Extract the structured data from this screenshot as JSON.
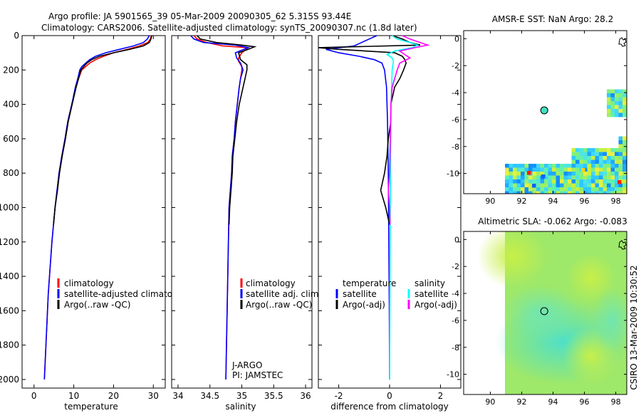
{
  "header": {
    "line1": "Argo profile: JA 5901565_39 05-Mar-2009 20090305_62 5.315S 93.44E",
    "line2": "Climatology: CARS2006. Satellite-adjusted climatology: synTS_20090307.nc (1.8d later)"
  },
  "credit": "CSIRO 13-Mar-2009 10:30:52",
  "colors": {
    "climatology": "#ff0000",
    "satellite": "#0000ff",
    "argo": "#000000",
    "sat_diff_salinity": "#00ffff",
    "argo_diff_salinity": "#ff00ff"
  },
  "chart_data": [
    {
      "id": "temperature",
      "type": "line",
      "xlabel": "temperature",
      "ylabel": "",
      "xlim": [
        -3,
        33
      ],
      "ylim": [
        2050,
        0
      ],
      "xticks": [
        0,
        10,
        20,
        30
      ],
      "yticks": [
        0,
        200,
        400,
        600,
        800,
        1000,
        1200,
        1400,
        1600,
        1800,
        2000
      ],
      "legend": [
        "climatology",
        "satellite-adjusted climatology",
        "Argo(..raw -QC)"
      ],
      "series": [
        {
          "name": "climatology",
          "color": "#ff0000",
          "points": [
            [
              29.5,
              0
            ],
            [
              29.3,
              20
            ],
            [
              28.6,
              40
            ],
            [
              26.5,
              60
            ],
            [
              23.5,
              80
            ],
            [
              20.0,
              100
            ],
            [
              17.5,
              120
            ],
            [
              15.5,
              140
            ],
            [
              14.0,
              160
            ],
            [
              13.0,
              180
            ],
            [
              12.0,
              200
            ],
            [
              11.2,
              250
            ],
            [
              10.5,
              300
            ],
            [
              9.5,
              400
            ],
            [
              8.5,
              500
            ],
            [
              7.8,
              600
            ],
            [
              7.0,
              700
            ],
            [
              6.3,
              800
            ],
            [
              5.8,
              900
            ],
            [
              5.3,
              1000
            ],
            [
              4.9,
              1100
            ],
            [
              4.5,
              1200
            ],
            [
              4.2,
              1300
            ],
            [
              3.9,
              1400
            ],
            [
              3.6,
              1500
            ],
            [
              3.4,
              1600
            ],
            [
              3.2,
              1700
            ],
            [
              3.0,
              1800
            ],
            [
              2.8,
              1900
            ],
            [
              2.6,
              2000
            ]
          ]
        },
        {
          "name": "satellite-adjusted climatology",
          "color": "#0000ff",
          "points": [
            [
              29.0,
              0
            ],
            [
              28.5,
              20
            ],
            [
              27.5,
              40
            ],
            [
              25.0,
              60
            ],
            [
              21.5,
              80
            ],
            [
              18.0,
              100
            ],
            [
              15.5,
              120
            ],
            [
              14.0,
              140
            ],
            [
              13.0,
              160
            ],
            [
              12.0,
              180
            ],
            [
              11.5,
              200
            ],
            [
              11.0,
              250
            ],
            [
              10.4,
              300
            ],
            [
              9.5,
              400
            ],
            [
              8.5,
              500
            ],
            [
              7.8,
              600
            ],
            [
              7.0,
              700
            ],
            [
              6.3,
              800
            ],
            [
              5.8,
              900
            ],
            [
              5.3,
              1000
            ],
            [
              4.9,
              1100
            ],
            [
              4.5,
              1200
            ],
            [
              4.2,
              1300
            ],
            [
              3.9,
              1400
            ],
            [
              3.6,
              1500
            ],
            [
              3.4,
              1600
            ],
            [
              3.2,
              1700
            ],
            [
              3.0,
              1800
            ],
            [
              2.8,
              1900
            ],
            [
              2.6,
              2000
            ]
          ]
        },
        {
          "name": "Argo(..raw -QC)",
          "color": "#000000",
          "points": [
            [
              29.6,
              0
            ],
            [
              29.4,
              20
            ],
            [
              29.0,
              40
            ],
            [
              27.5,
              60
            ],
            [
              24.0,
              80
            ],
            [
              20.0,
              100
            ],
            [
              16.5,
              120
            ],
            [
              14.5,
              140
            ],
            [
              13.3,
              160
            ],
            [
              12.5,
              180
            ],
            [
              11.8,
              200
            ],
            [
              11.2,
              250
            ],
            [
              10.6,
              300
            ],
            [
              9.6,
              400
            ],
            [
              8.6,
              500
            ],
            [
              7.9,
              600
            ],
            [
              7.1,
              700
            ],
            [
              6.4,
              800
            ],
            [
              5.9,
              900
            ],
            [
              5.3,
              1000
            ],
            [
              4.9,
              1100
            ]
          ]
        }
      ]
    },
    {
      "id": "salinity",
      "type": "line",
      "xlabel": "salinity",
      "ylabel": "",
      "xlim": [
        33.9,
        36.1
      ],
      "ylim": [
        2050,
        0
      ],
      "xticks": [
        34,
        34.5,
        35,
        35.5,
        36
      ],
      "legend": [
        "climatology",
        "satellite adj. clim.",
        "Argo(..raw -QC)"
      ],
      "annotations": [
        "J-ARGO",
        "PI: JAMSTEC"
      ],
      "series": [
        {
          "name": "climatology",
          "color": "#ff0000",
          "points": [
            [
              34.25,
              0
            ],
            [
              34.3,
              20
            ],
            [
              34.45,
              40
            ],
            [
              34.7,
              60
            ],
            [
              35.1,
              70
            ],
            [
              35.0,
              100
            ],
            [
              34.95,
              130
            ],
            [
              34.95,
              150
            ],
            [
              35.0,
              180
            ],
            [
              35.0,
              200
            ],
            [
              34.98,
              250
            ],
            [
              34.96,
              300
            ],
            [
              34.93,
              400
            ],
            [
              34.9,
              500
            ],
            [
              34.88,
              600
            ],
            [
              34.85,
              700
            ],
            [
              34.84,
              800
            ],
            [
              34.82,
              900
            ],
            [
              34.8,
              1000
            ],
            [
              34.79,
              1200
            ],
            [
              34.78,
              1400
            ],
            [
              34.77,
              1600
            ],
            [
              34.76,
              1800
            ],
            [
              34.75,
              2000
            ]
          ]
        },
        {
          "name": "satellite adj. clim.",
          "color": "#0000ff",
          "points": [
            [
              34.2,
              0
            ],
            [
              34.25,
              20
            ],
            [
              34.4,
              40
            ],
            [
              34.9,
              55
            ],
            [
              35.1,
              70
            ],
            [
              34.9,
              100
            ],
            [
              34.92,
              130
            ],
            [
              34.98,
              160
            ],
            [
              35.02,
              200
            ],
            [
              34.98,
              250
            ],
            [
              34.96,
              300
            ],
            [
              34.93,
              400
            ],
            [
              34.9,
              500
            ],
            [
              34.88,
              600
            ],
            [
              34.85,
              700
            ],
            [
              34.84,
              800
            ],
            [
              34.82,
              900
            ],
            [
              34.8,
              1000
            ],
            [
              34.79,
              1200
            ],
            [
              34.78,
              1400
            ],
            [
              34.77,
              1600
            ],
            [
              34.76,
              1800
            ],
            [
              34.75,
              2000
            ]
          ]
        },
        {
          "name": "Argo(..raw -QC)",
          "color": "#000000",
          "points": [
            [
              34.3,
              0
            ],
            [
              34.35,
              20
            ],
            [
              34.6,
              40
            ],
            [
              35.0,
              55
            ],
            [
              35.2,
              65
            ],
            [
              35.1,
              80
            ],
            [
              34.95,
              100
            ],
            [
              34.98,
              140
            ],
            [
              35.08,
              170
            ],
            [
              35.08,
              200
            ],
            [
              35.05,
              250
            ],
            [
              35.02,
              300
            ],
            [
              34.96,
              400
            ],
            [
              34.92,
              500
            ],
            [
              34.89,
              600
            ],
            [
              34.86,
              700
            ],
            [
              34.85,
              800
            ],
            [
              34.83,
              900
            ],
            [
              34.81,
              1000
            ],
            [
              34.8,
              1100
            ]
          ]
        }
      ]
    },
    {
      "id": "difference",
      "type": "line",
      "xlabel": "difference from climatology",
      "ylabel": "",
      "xlim": [
        -2.8,
        2.8
      ],
      "ylim": [
        2050,
        0
      ],
      "xticks": [
        -2,
        0,
        2
      ],
      "legend_temperature": {
        "title": "temperature",
        "items": [
          "satellite",
          "Argo(-adj)"
        ]
      },
      "legend_salinity": {
        "title": "salinity",
        "items": [
          "satellite",
          "Argo(-adj)"
        ]
      },
      "series": [
        {
          "name": "temperature satellite",
          "color": "#0000ff",
          "points": [
            [
              -0.5,
              0
            ],
            [
              -0.8,
              20
            ],
            [
              -1.1,
              40
            ],
            [
              -1.4,
              60
            ],
            [
              -2.5,
              80
            ],
            [
              -2.0,
              100
            ],
            [
              -1.2,
              120
            ],
            [
              -0.6,
              140
            ],
            [
              -0.3,
              160
            ],
            [
              -0.2,
              200
            ],
            [
              -0.12,
              300
            ],
            [
              -0.08,
              500
            ],
            [
              -0.05,
              800
            ],
            [
              -0.03,
              1200
            ],
            [
              -0.01,
              1600
            ],
            [
              0,
              2000
            ]
          ]
        },
        {
          "name": "temperature Argo(-adj)",
          "color": "#000000",
          "points": [
            [
              0.1,
              0
            ],
            [
              0.5,
              20
            ],
            [
              0.8,
              40
            ],
            [
              1.2,
              55
            ],
            [
              -2.8,
              70
            ],
            [
              -2.0,
              80
            ],
            [
              0.2,
              100
            ],
            [
              0.5,
              120
            ],
            [
              0.6,
              140
            ],
            [
              0.65,
              160
            ],
            [
              0.55,
              200
            ],
            [
              0.4,
              250
            ],
            [
              0.2,
              300
            ],
            [
              0.05,
              400
            ],
            [
              0.05,
              500
            ],
            [
              -0.05,
              600
            ],
            [
              -0.1,
              700
            ],
            [
              -0.2,
              800
            ],
            [
              -0.35,
              900
            ],
            [
              -0.15,
              1000
            ],
            [
              0.0,
              1100
            ]
          ]
        },
        {
          "name": "salinity satellite",
          "color": "#00ffff",
          "points": [
            [
              0.1,
              0
            ],
            [
              0.3,
              20
            ],
            [
              0.8,
              40
            ],
            [
              1.1,
              55
            ],
            [
              0.9,
              70
            ],
            [
              0.2,
              90
            ],
            [
              -0.1,
              110
            ],
            [
              0.1,
              130
            ],
            [
              0.15,
              150
            ],
            [
              0.1,
              200
            ],
            [
              0.08,
              300
            ],
            [
              0.06,
              400
            ],
            [
              0.05,
              500
            ],
            [
              0.04,
              700
            ],
            [
              0.03,
              900
            ],
            [
              0.02,
              1200
            ],
            [
              0.01,
              1600
            ],
            [
              0,
              2000
            ]
          ]
        },
        {
          "name": "salinity Argo(-adj)",
          "color": "#ff00ff",
          "points": [
            [
              0.5,
              0
            ],
            [
              0.8,
              20
            ],
            [
              1.2,
              40
            ],
            [
              1.5,
              55
            ],
            [
              1.0,
              70
            ],
            [
              0.4,
              90
            ],
            [
              0.6,
              110
            ],
            [
              0.8,
              130
            ],
            [
              0.4,
              160
            ],
            [
              0.3,
              200
            ],
            [
              0.2,
              250
            ],
            [
              0.1,
              300
            ],
            [
              0.05,
              400
            ],
            [
              0.03,
              600
            ],
            [
              0.0,
              800
            ],
            [
              -0.05,
              900
            ],
            [
              0.0,
              1000
            ],
            [
              0.02,
              1100
            ]
          ]
        }
      ]
    },
    {
      "id": "sst_map",
      "type": "heatmap",
      "title": "AMSR-E SST: NaN Argo: 28.2",
      "xlim": [
        88.3,
        98.7
      ],
      "ylim": [
        -11.5,
        0.6
      ],
      "xticks": [
        90,
        92,
        94,
        96,
        98
      ],
      "yticks": [
        0,
        -2,
        -4,
        -6,
        -8,
        -10
      ],
      "argo_position": [
        93.44,
        -5.315
      ]
    },
    {
      "id": "sla_map",
      "type": "heatmap",
      "title": "Altimetric SLA: -0.062 Argo: -0.083",
      "xlim": [
        88.3,
        98.7
      ],
      "ylim": [
        -11.5,
        0.6
      ],
      "xticks": [
        90,
        92,
        94,
        96,
        98
      ],
      "yticks": [
        0,
        -2,
        -4,
        -6,
        -8,
        -10
      ],
      "argo_position": [
        93.44,
        -5.315
      ]
    }
  ]
}
